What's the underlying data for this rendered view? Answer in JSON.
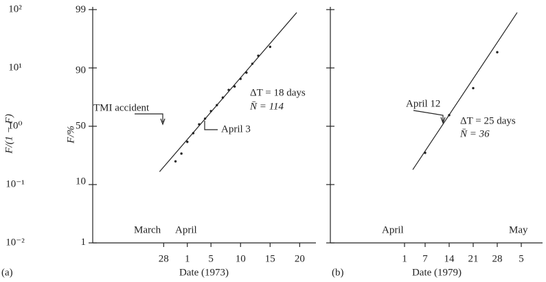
{
  "chart_data": [
    {
      "type": "scatter",
      "panel_label": "(a)",
      "xlabel": "Date (1973)",
      "ylabel": "F/(1 − F)",
      "y2label": "F/%",
      "xlim": [
        -15,
        22.75
      ],
      "xticks": [
        {
          "value": -3,
          "label": "28"
        },
        1,
        5,
        10,
        15,
        20
      ],
      "yscale": "log",
      "ylim": [
        0.01,
        100
      ],
      "yticks": [
        {
          "value": 100,
          "label": "10²"
        },
        {
          "value": 10,
          "label": "10¹"
        },
        {
          "value": 1,
          "label": "10⁰"
        },
        {
          "value": 0.1,
          "label": "10⁻¹"
        },
        {
          "value": 0.01,
          "label": "10⁻²"
        }
      ],
      "ytick_labels": true,
      "y2scale": "probability",
      "y2lim": [
        1,
        99
      ],
      "y2ticks": [
        99,
        90,
        50,
        10,
        1
      ],
      "x": [
        -1,
        0,
        1,
        2,
        3,
        4,
        5,
        6,
        7,
        8,
        9,
        10,
        11,
        12,
        13,
        15
      ],
      "values": [
        0.25,
        0.34,
        0.54,
        0.76,
        1.08,
        1.35,
        1.82,
        2.3,
        3.1,
        4.2,
        4.8,
        6.5,
        8.3,
        11.8,
        16.2,
        23
      ],
      "fit_line": {
        "x": [
          -3.7,
          19.5
        ],
        "values": [
          0.166,
          89
        ]
      },
      "color": "#222222",
      "annotations": [
        "TMI accident",
        "April 3",
        "ΔT = 18 days",
        "N̄ = 114",
        "March",
        "April"
      ]
    },
    {
      "type": "scatter",
      "panel_label": "(b)",
      "xlabel": "Date (1979)",
      "xlim": [
        -20.6,
        41.2
      ],
      "xticks": [
        1,
        7,
        14,
        21,
        28,
        {
          "value": 35,
          "label": "5"
        }
      ],
      "yscale": "log",
      "ylim": [
        0.01,
        100
      ],
      "yticks": [
        100,
        10,
        1,
        0.1,
        0.01
      ],
      "ytick_labels": false,
      "x": [
        7,
        14,
        21,
        28
      ],
      "values": [
        0.35,
        1.55,
        4.5,
        18.6
      ],
      "fit_line": {
        "x": [
          3.4,
          33.8
        ],
        "values": [
          0.18,
          89
        ]
      },
      "color": "#222222",
      "annotations": [
        "April 12",
        "ΔT = 25 days",
        "N̄ = 36",
        "April",
        "May"
      ]
    }
  ]
}
